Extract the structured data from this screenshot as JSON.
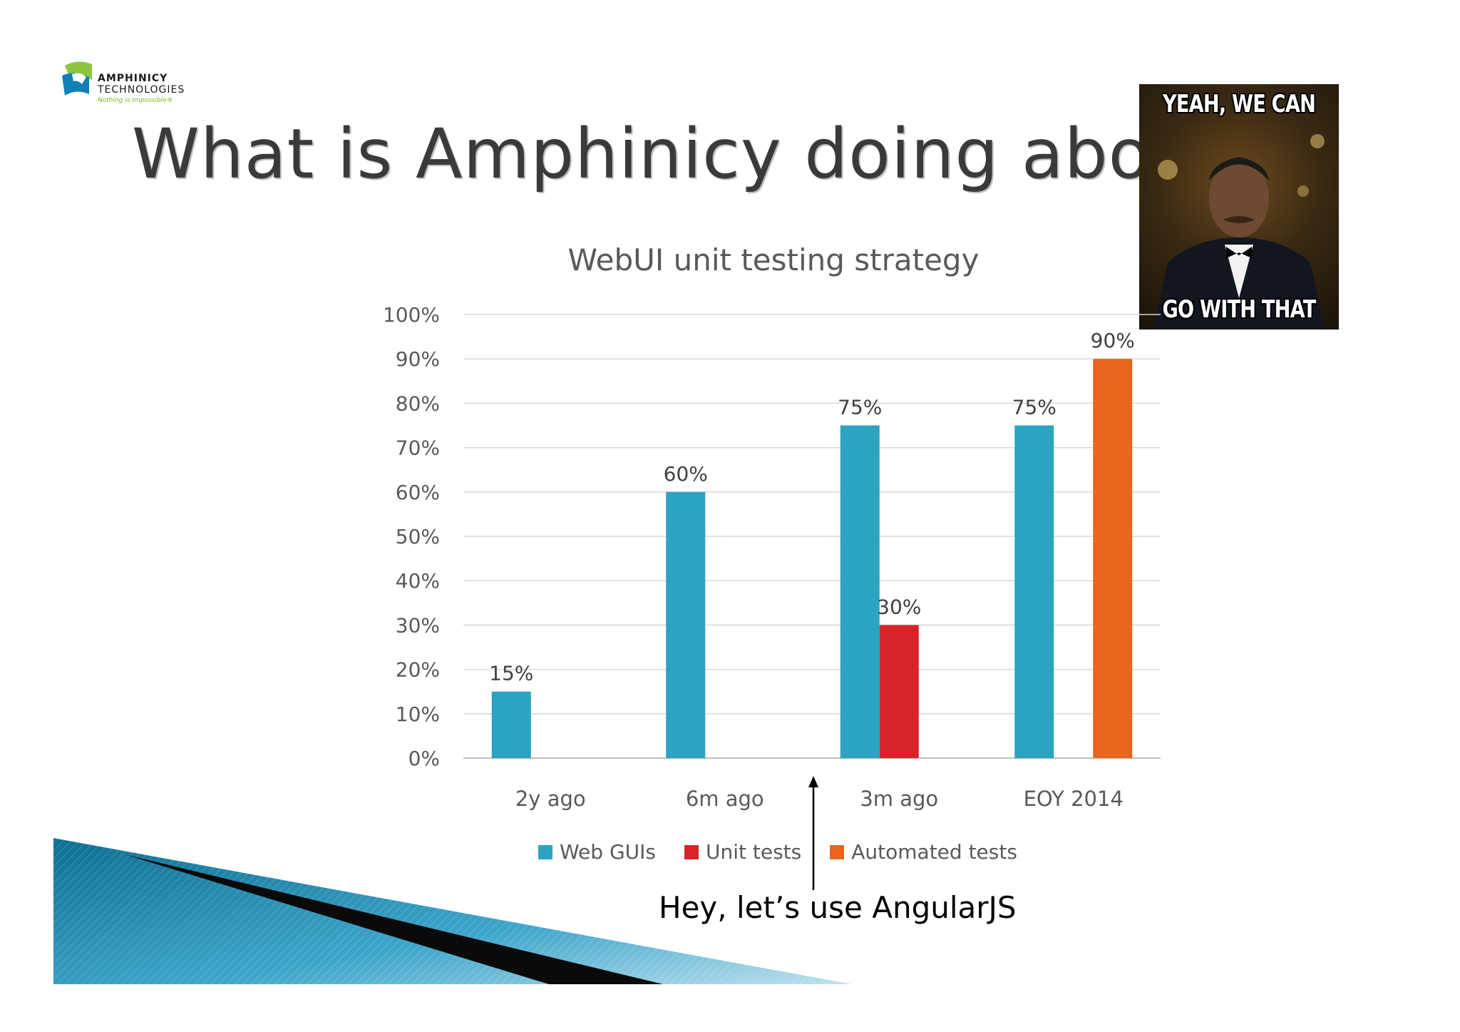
{
  "logo": {
    "line1": "AMPHINICY",
    "line2": "TECHNOLOGIES",
    "tagline": "Nothing is Impossible®"
  },
  "page": {
    "title": "What is Amphinicy doing abo"
  },
  "meme": {
    "top_text": "YEAH, WE CAN",
    "bottom_text": "GO WITH THAT"
  },
  "annotation": {
    "text": "Hey, let’s use AngularJS"
  },
  "chart_data": {
    "type": "bar",
    "title": "WebUI unit testing strategy",
    "xlabel": "",
    "ylabel": "",
    "categories": [
      "2y ago",
      "6m ago",
      "3m ago",
      "EOY 2014"
    ],
    "ylim": [
      0,
      100
    ],
    "yticks": [
      "0%",
      "10%",
      "20%",
      "30%",
      "40%",
      "50%",
      "60%",
      "70%",
      "80%",
      "90%",
      "100%"
    ],
    "grid": true,
    "legend_position": "bottom",
    "series": [
      {
        "name": "Web GUIs",
        "color": "#2ca3c0",
        "values": [
          15,
          60,
          75,
          75
        ],
        "labels": [
          "15%",
          "60%",
          "75%",
          "75%"
        ]
      },
      {
        "name": "Unit tests",
        "color": "#d9232a",
        "values": [
          null,
          null,
          30,
          null
        ],
        "labels": [
          "",
          "",
          "30%",
          ""
        ]
      },
      {
        "name": "Automated tests",
        "color": "#e8651e",
        "values": [
          null,
          null,
          null,
          90
        ],
        "labels": [
          "",
          "",
          "",
          "90%"
        ]
      }
    ]
  }
}
